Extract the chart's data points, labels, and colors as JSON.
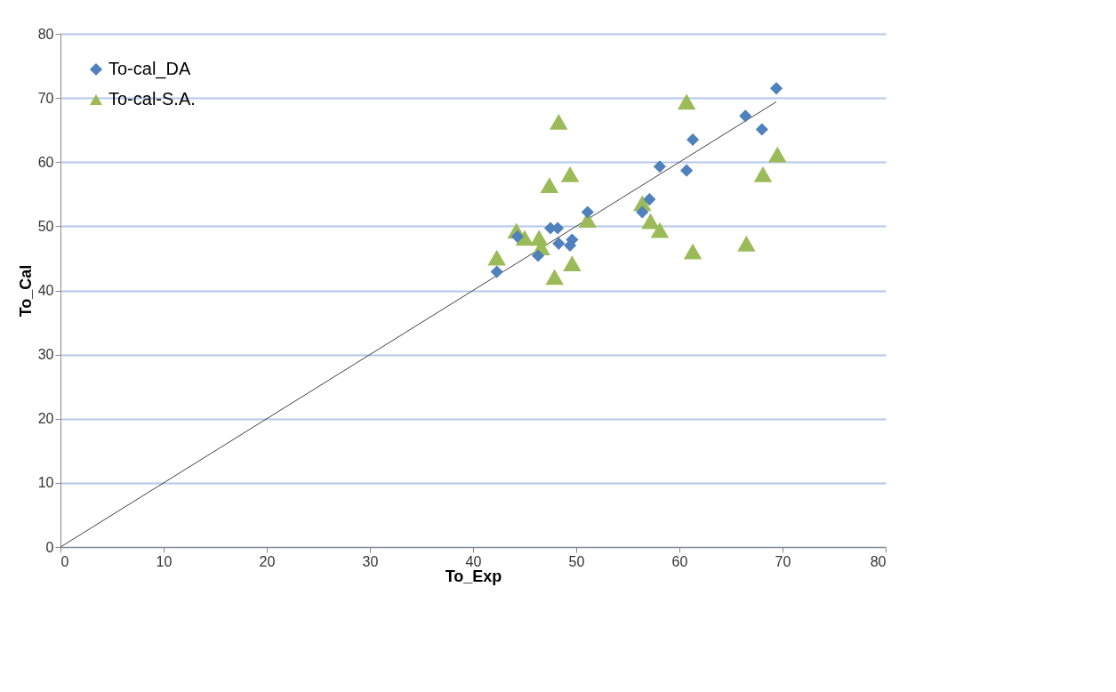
{
  "chart_data": {
    "type": "scatter",
    "xlabel": "To_Exp",
    "ylabel": "To_Cal",
    "xlim": [
      0,
      80
    ],
    "xticks": [
      0,
      10,
      20,
      30,
      40,
      50,
      60,
      70,
      80
    ],
    "ylim": [
      0,
      80
    ],
    "yticks": [
      0,
      10,
      20,
      30,
      40,
      50,
      60,
      70,
      80
    ],
    "grid": "y",
    "legend": "top left",
    "series": [
      {
        "name": "To-cal_DA",
        "color": "#4f81bd",
        "marker": "diamond",
        "x": [
          42.3,
          44.3,
          47.5,
          48.2,
          48.3,
          49.6,
          49.4,
          46.3,
          51.1,
          69.4,
          66.4,
          68.0,
          61.3,
          58.1,
          60.7,
          57.1,
          56.4
        ],
        "values": [
          42.9,
          48.4,
          49.7,
          49.7,
          47.3,
          47.9,
          47.0,
          45.4,
          52.2,
          71.5,
          67.2,
          65.1,
          63.5,
          59.3,
          58.7,
          54.2,
          52.2
        ]
      },
      {
        "name": "To-cal-S.A.",
        "color": "#9bbb59",
        "marker": "triangle",
        "x": [
          42.3,
          44.2,
          45.0,
          46.4,
          46.6,
          47.4,
          47.9,
          48.3,
          49.4,
          49.6,
          51.1,
          60.7,
          69.5,
          68.1,
          56.4,
          57.2,
          58.1,
          61.3,
          66.5
        ],
        "values": [
          45.1,
          49.3,
          48.2,
          48.2,
          46.7,
          56.4,
          42.1,
          66.3,
          58.1,
          44.2,
          51.0,
          69.4,
          61.2,
          58.1,
          53.6,
          50.8,
          49.4,
          46.1,
          47.3
        ]
      },
      {
        "type": "line",
        "color": "#404040",
        "x": [
          0,
          69.4
        ],
        "values": [
          0,
          69.4
        ]
      }
    ]
  }
}
